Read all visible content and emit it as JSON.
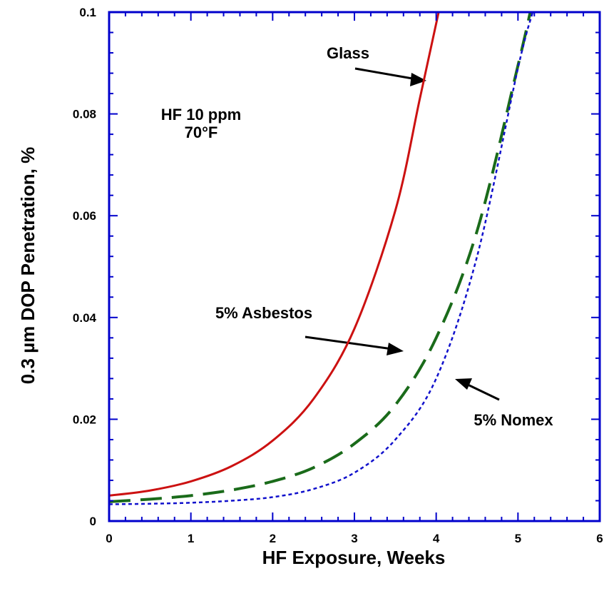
{
  "chart_data": {
    "type": "line",
    "title": "",
    "xlabel": "HF Exposure, Weeks",
    "ylabel": "0.3 µm DOP Penetration, %",
    "xlim": [
      0,
      6
    ],
    "ylim": [
      0,
      0.1
    ],
    "x_ticks": [
      "0",
      "1",
      "2",
      "3",
      "4",
      "5",
      "6"
    ],
    "y_ticks": [
      "0",
      "0.02",
      "0.04",
      "0.06",
      "0.08",
      "0.1"
    ],
    "grid": false,
    "frame_color": "#0000cc",
    "annotation": {
      "line1": "HF 10 ppm",
      "line2": "70°F"
    },
    "series": [
      {
        "name": "Glass",
        "color": "#cc1111",
        "style": "solid",
        "x": [
          0,
          0.5,
          1.0,
          1.5,
          2.0,
          2.5,
          3.0,
          3.5,
          3.8,
          4.03
        ],
        "y": [
          0.005,
          0.006,
          0.0078,
          0.0108,
          0.0158,
          0.024,
          0.0378,
          0.061,
          0.083,
          0.1
        ]
      },
      {
        "name": "5% Asbestos",
        "color": "#1a6b1a",
        "style": "dashed",
        "x": [
          0,
          0.5,
          1.0,
          1.5,
          2.0,
          2.5,
          3.0,
          3.5,
          4.0,
          4.5,
          5.0,
          5.15
        ],
        "y": [
          0.0038,
          0.0043,
          0.005,
          0.0061,
          0.0078,
          0.0105,
          0.0152,
          0.0228,
          0.036,
          0.057,
          0.0895,
          0.1
        ]
      },
      {
        "name": "5% Nomex",
        "color": "#1111cc",
        "style": "dotted",
        "x": [
          0,
          0.5,
          1.0,
          1.5,
          2.0,
          2.5,
          3.0,
          3.5,
          4.0,
          4.5,
          5.0,
          5.18
        ],
        "y": [
          0.0033,
          0.0034,
          0.0036,
          0.004,
          0.0047,
          0.0063,
          0.0095,
          0.016,
          0.028,
          0.052,
          0.089,
          0.1
        ]
      }
    ],
    "labels": {
      "glass": "Glass",
      "asbestos": "5% Asbestos",
      "nomex": "5% Nomex"
    }
  }
}
